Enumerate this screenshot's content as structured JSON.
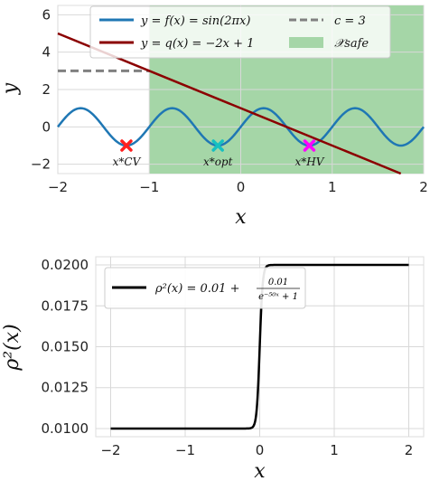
{
  "chart_data": [
    {
      "type": "line",
      "xlabel": "x",
      "ylabel": "y",
      "xlim": [
        -2,
        2
      ],
      "ylim": [
        -2.5,
        6.5
      ],
      "xticks": [
        -2,
        -1,
        0,
        1,
        2
      ],
      "xtick_labels": [
        "−2",
        "−1",
        "0",
        "1",
        "2"
      ],
      "yticks": [
        -2,
        0,
        2,
        4,
        6
      ],
      "ytick_labels": [
        "−2",
        "0",
        "2",
        "4",
        "6"
      ],
      "grid": true,
      "legend_position": "top-center",
      "safe_region": {
        "x_from": -1,
        "x_to": 2,
        "label": "𝒳_safe",
        "color": "#a5d6a7"
      },
      "series": [
        {
          "name": "y = f(x) = sin(2πx)",
          "function": "sin(2*pi*x)",
          "color": "#1f77b4"
        },
        {
          "name": "y = q(x) = −2x + 1",
          "function": "-2*x+1",
          "color": "#8b0000"
        },
        {
          "name": "c = 3",
          "function": "3",
          "x_to": -1,
          "color": "#808080",
          "dashed": true
        }
      ],
      "legend": [
        {
          "label": "y = f(x) = sin(2πx)",
          "kind": "line",
          "color": "#1f77b4"
        },
        {
          "label": "c = 3",
          "kind": "dash",
          "color": "#808080"
        },
        {
          "label": "y = q(x) = −2x + 1",
          "kind": "line",
          "color": "#8b0000"
        },
        {
          "label": "𝒳safe",
          "kind": "patch",
          "color": "#a5d6a7"
        }
      ],
      "markers": [
        {
          "x": -1.25,
          "y": -1,
          "color": "#ff2020",
          "label": "x*CV"
        },
        {
          "x": -0.25,
          "y": -1,
          "color": "#17c0c0",
          "label": "x*opt"
        },
        {
          "x": 0.75,
          "y": -1,
          "color": "#ff00ff",
          "label": "x*HV"
        }
      ]
    },
    {
      "type": "line",
      "xlabel": "x",
      "ylabel": "ρ²(x)",
      "xlim": [
        -2.2,
        2.2
      ],
      "ylim": [
        0.0095,
        0.0205
      ],
      "xticks": [
        -2,
        -1,
        0,
        1,
        2
      ],
      "xtick_labels": [
        "−2",
        "−1",
        "0",
        "1",
        "2"
      ],
      "yticks": [
        0.01,
        0.0125,
        0.015,
        0.0175,
        0.02
      ],
      "ytick_labels": [
        "0.0100",
        "0.0125",
        "0.0150",
        "0.0175",
        "0.0200"
      ],
      "grid": true,
      "legend_position": "top-left",
      "series": [
        {
          "name": "ρ²(x) = 0.01 + 0.01 / (e^(−50x) + 1)",
          "function": "0.01+0.01/(exp(-50*x)+1)",
          "x_range": [
            -2,
            2
          ],
          "color": "#000000"
        }
      ],
      "legend": [
        {
          "label": "ρ²(x) = 0.01 +",
          "fraction_num": "0.01",
          "fraction_den": "e⁻⁵⁰ˣ + 1",
          "kind": "line",
          "color": "#000000"
        }
      ]
    }
  ]
}
